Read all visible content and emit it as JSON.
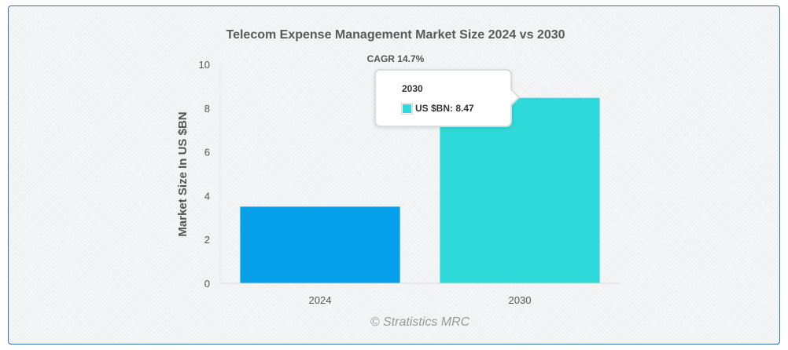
{
  "chart_data": {
    "type": "bar",
    "title": "Telecom Expense Management Market Size 2024 vs 2030",
    "annotation": "CAGR 14.7%",
    "categories": [
      "2024",
      "2030"
    ],
    "values": [
      3.5,
      8.47
    ],
    "colors": [
      "#069fe9",
      "#2ed9d9"
    ],
    "xlabel": "",
    "ylabel": "Market Size In US $BN",
    "ylim": [
      0,
      10
    ],
    "yticks": [
      "0",
      "2",
      "4",
      "6",
      "8",
      "10"
    ],
    "grid": false,
    "credit": "© Stratistics MRC",
    "tooltip": {
      "title": "2030",
      "label": "US $BN: 8.47",
      "color": "#2ed9d9"
    }
  }
}
